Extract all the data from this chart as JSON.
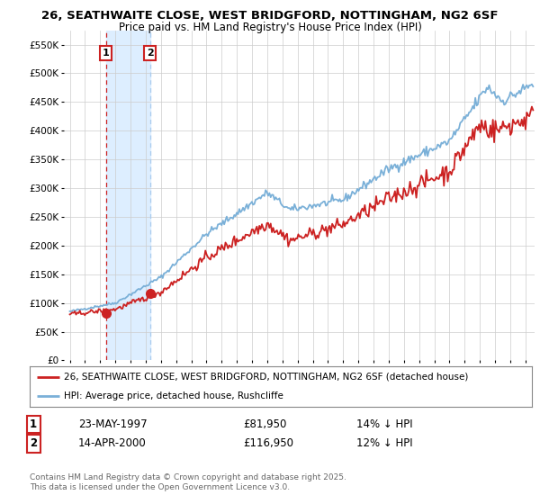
{
  "title_line1": "26, SEATHWAITE CLOSE, WEST BRIDGFORD, NOTTINGHAM, NG2 6SF",
  "title_line2": "Price paid vs. HM Land Registry's House Price Index (HPI)",
  "ylim": [
    0,
    575000
  ],
  "xlim_start": 1994.6,
  "xlim_end": 2025.6,
  "yticks": [
    0,
    50000,
    100000,
    150000,
    200000,
    250000,
    300000,
    350000,
    400000,
    450000,
    500000,
    550000
  ],
  "ytick_labels": [
    "£0",
    "£50K",
    "£100K",
    "£150K",
    "£200K",
    "£250K",
    "£300K",
    "£350K",
    "£400K",
    "£450K",
    "£500K",
    "£550K"
  ],
  "xtick_years": [
    1995,
    1996,
    1997,
    1998,
    1999,
    2000,
    2001,
    2002,
    2003,
    2004,
    2005,
    2006,
    2007,
    2008,
    2009,
    2010,
    2011,
    2012,
    2013,
    2014,
    2015,
    2016,
    2017,
    2018,
    2019,
    2020,
    2021,
    2022,
    2023,
    2024,
    2025
  ],
  "purchase1_year": 1997.38,
  "purchase1_price": 81950,
  "purchase1_label": "1",
  "purchase1_date": "23-MAY-1997",
  "purchase1_hpi_diff": "14% ↓ HPI",
  "purchase2_year": 2000.28,
  "purchase2_price": 116950,
  "purchase2_label": "2",
  "purchase2_date": "14-APR-2000",
  "purchase2_hpi_diff": "12% ↓ HPI",
  "red_color": "#cc2222",
  "blue_color": "#7ab0d8",
  "shade_color": "#ddeeff",
  "bg_color": "#ffffff",
  "plot_bg": "#ffffff",
  "legend_line1": "26, SEATHWAITE CLOSE, WEST BRIDGFORD, NOTTINGHAM, NG2 6SF (detached house)",
  "legend_line2": "HPI: Average price, detached house, Rushcliffe",
  "footer": "Contains HM Land Registry data © Crown copyright and database right 2025.\nThis data is licensed under the Open Government Licence v3.0."
}
